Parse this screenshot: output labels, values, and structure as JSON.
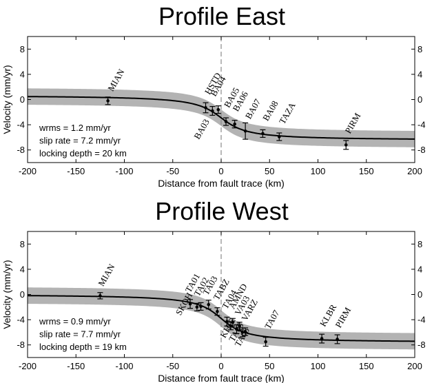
{
  "chart_data": [
    {
      "type": "scatter",
      "title": "Profile East",
      "xlabel": "Distance from fault trace (km)",
      "ylabel": "Velocity (mm/yr)",
      "xlim": [
        -200,
        200
      ],
      "ylim": [
        -10,
        10
      ],
      "x_ticks": [
        -200,
        -150,
        -100,
        -50,
        0,
        50,
        100,
        150,
        200
      ],
      "y_ticks": [
        -8,
        -4,
        0,
        4,
        8
      ],
      "stats": [
        "wrms = 1.2 mm/yr",
        "slip rate = 7.2 mm/yr",
        "locking depth = 20 km"
      ],
      "model": {
        "slip_rate": 7.2,
        "locking_depth": 20,
        "offset": -2.9,
        "band": 1.3
      },
      "fault_trace_x": 0,
      "points": [
        {
          "name": "MIAN",
          "x": -117,
          "y": -0.2,
          "err": 0.6
        },
        {
          "name": "HSTD",
          "x": -16,
          "y": -1.3,
          "err": 0.8
        },
        {
          "name": "BA04",
          "x": -9,
          "y": -1.8,
          "err": 0.7
        },
        {
          "name": "BA03",
          "x": -3,
          "y": -1.6,
          "err": 0.6
        },
        {
          "name": "BA05",
          "x": 5,
          "y": -3.5,
          "err": 0.6
        },
        {
          "name": "BA06",
          "x": 14,
          "y": -3.9,
          "err": 0.6
        },
        {
          "name": "BA07",
          "x": 25,
          "y": -5.0,
          "err": 1.3
        },
        {
          "name": "BA08",
          "x": 43,
          "y": -5.4,
          "err": 0.6
        },
        {
          "name": "TAZA",
          "x": 60,
          "y": -5.9,
          "err": 0.6
        },
        {
          "name": "PIRM",
          "x": 129,
          "y": -7.2,
          "err": 0.7
        }
      ],
      "labels": [
        "MIAN",
        "HSTD",
        "BA04",
        "BA05",
        "BA06",
        "BA07",
        "BA08",
        "TAZA",
        "PIRM",
        "BA03"
      ]
    },
    {
      "type": "scatter",
      "title": "Profile West",
      "xlabel": "Distance from fault trace (km)",
      "ylabel": "Velocity (mm/yr)",
      "xlim": [
        -200,
        200
      ],
      "ylim": [
        -10,
        10
      ],
      "x_ticks": [
        -200,
        -150,
        -100,
        -50,
        0,
        50,
        100,
        150,
        200
      ],
      "y_ticks": [
        -8,
        -4,
        0,
        4,
        8
      ],
      "stats": [
        "wrms = 0.9 mm/yr",
        "slip rate = 7.7 mm/yr",
        "locking depth = 19 km"
      ],
      "model": {
        "slip_rate": 7.7,
        "locking_depth": 19,
        "offset": -3.8,
        "band": 1.3
      },
      "fault_trace_x": 0,
      "points": [
        {
          "name": "MIAN",
          "x": -125,
          "y": -0.2,
          "err": 0.5
        },
        {
          "name": "SKOH",
          "x": -32,
          "y": -1.5,
          "err": 0.7
        },
        {
          "name": "TA01",
          "x": -25,
          "y": -2.0,
          "err": 0.6
        },
        {
          "name": "TA02",
          "x": -21,
          "y": -1.9,
          "err": 0.6
        },
        {
          "name": "TA03",
          "x": -13,
          "y": -1.6,
          "err": 0.7
        },
        {
          "name": "TABZ",
          "x": -4,
          "y": -2.7,
          "err": 0.6
        },
        {
          "name": "TA04",
          "x": 6,
          "y": -4.3,
          "err": 0.7
        },
        {
          "name": "KHIE",
          "x": 10,
          "y": -5.0,
          "err": 0.6
        },
        {
          "name": "AMND",
          "x": 12,
          "y": -4.4,
          "err": 0.6
        },
        {
          "name": "TA05",
          "x": 16,
          "y": -5.5,
          "err": 0.7
        },
        {
          "name": "VA03",
          "x": 19,
          "y": -5.0,
          "err": 0.6
        },
        {
          "name": "TA06",
          "x": 22,
          "y": -6.0,
          "err": 0.7
        },
        {
          "name": "VARZ",
          "x": 25,
          "y": -5.9,
          "err": 0.6
        },
        {
          "name": "TA07",
          "x": 46,
          "y": -7.5,
          "err": 0.7
        },
        {
          "name": "KLBR",
          "x": 104,
          "y": -7.0,
          "err": 0.7
        },
        {
          "name": "PIRM",
          "x": 120,
          "y": -7.1,
          "err": 0.7
        }
      ],
      "labels": [
        "MIAN",
        "TA01",
        "TA02",
        "TA03",
        "TABZ",
        "TA04",
        "AMND",
        "VA03",
        "VARZ",
        "TA07",
        "KLBR",
        "PIRM",
        "SKOH",
        "KHIE",
        "TA05",
        "TA06"
      ]
    }
  ],
  "colors": {
    "band": "#b3b3b3",
    "line": "#000000",
    "fault_trace": "#8a8a8a",
    "points": "#000000"
  }
}
